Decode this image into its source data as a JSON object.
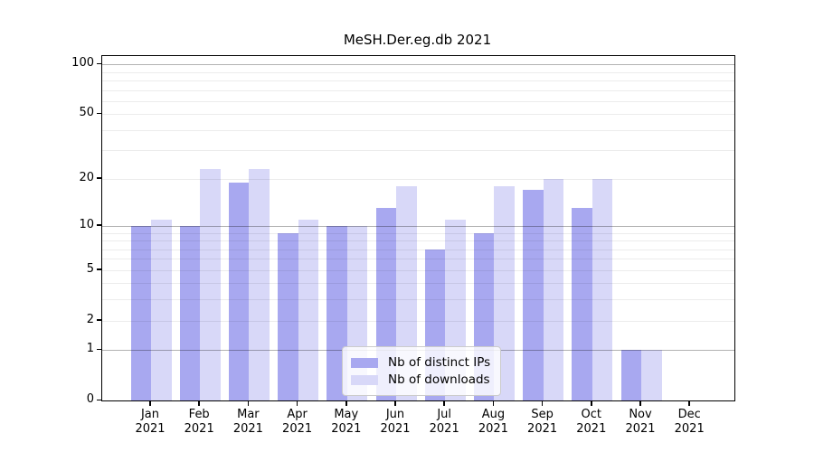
{
  "title": "MeSH.Der.eg.db 2021",
  "chart_data": {
    "type": "bar",
    "title": "MeSH.Der.eg.db 2021",
    "year": "2021",
    "months": [
      "Jan",
      "Feb",
      "Mar",
      "Apr",
      "May",
      "Jun",
      "Jul",
      "Aug",
      "Sep",
      "Oct",
      "Nov",
      "Dec"
    ],
    "categories": [
      "Jan 2021",
      "Feb 2021",
      "Mar 2021",
      "Apr 2021",
      "May 2021",
      "Jun 2021",
      "Jul 2021",
      "Aug 2021",
      "Sep 2021",
      "Oct 2021",
      "Nov 2021",
      "Dec 2021"
    ],
    "series": [
      {
        "name": "Nb of distinct IPs",
        "color": "#a8a8f0",
        "values": [
          10,
          10,
          19,
          9,
          10,
          13,
          7,
          9,
          17,
          13,
          1,
          0
        ]
      },
      {
        "name": "Nb of downloads",
        "color": "#d8d8f8",
        "values": [
          11,
          23,
          23,
          11,
          10,
          18,
          11,
          18,
          20,
          20,
          1,
          0
        ]
      }
    ],
    "y_scale": "log10(1+x)",
    "y_tick_labels": [
      "100",
      "50",
      "20",
      "10",
      "5",
      "2",
      "1",
      "0"
    ],
    "y_tick_values": [
      100,
      50,
      20,
      10,
      5,
      2,
      1,
      0
    ],
    "y_major_gridlines": [
      1,
      10,
      100
    ],
    "y_minor_gridlines": [
      2,
      3,
      4,
      5,
      6,
      7,
      8,
      9,
      20,
      30,
      40,
      50,
      60,
      70,
      80,
      90
    ],
    "ylim": [
      0,
      114
    ],
    "grid": true,
    "legend_position": "lower center",
    "colors": {
      "axis": "#000000",
      "grid_major": "#b3b3b3",
      "grid_minor": "#ebebeb"
    }
  }
}
